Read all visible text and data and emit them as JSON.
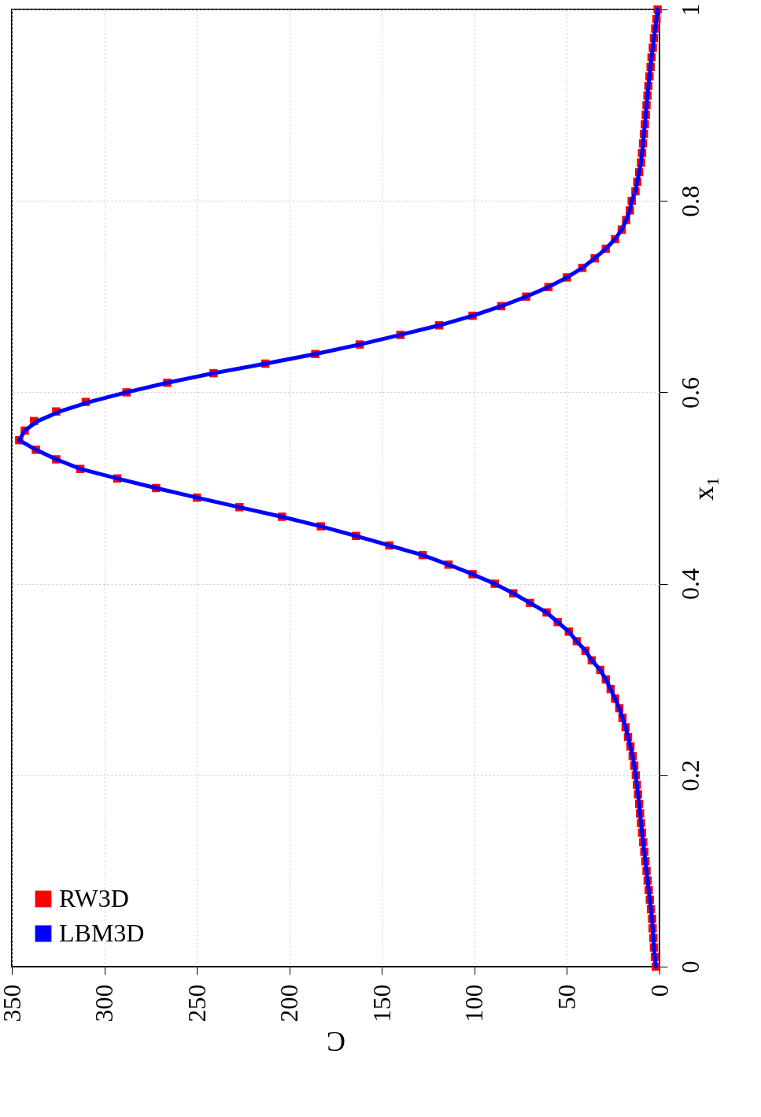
{
  "chart_data": {
    "type": "line",
    "xlabel": "C",
    "ylabel": "x₁",
    "series": [
      {
        "name": "RW3D",
        "type": "scatter",
        "marker": "square",
        "color": "#ff0000",
        "x": [
          2,
          2.5,
          3,
          3.3,
          3.7,
          4,
          4.6,
          5.2,
          5.8,
          6.4,
          7,
          7.6,
          8.2,
          8.8,
          9.4,
          10,
          10.5,
          11,
          11.6,
          12.2,
          12.8,
          13.6,
          14.5,
          15.7,
          17,
          18.3,
          20,
          21.7,
          24,
          26.4,
          29,
          32,
          36.6,
          40,
          44.7,
          49,
          55,
          61,
          70,
          79,
          89,
          101,
          114,
          128,
          146,
          164,
          183,
          204,
          227,
          250,
          272,
          293,
          313,
          326,
          337,
          346,
          343,
          338,
          326,
          310,
          288,
          266,
          241,
          213,
          186,
          162,
          140,
          119,
          101,
          85.5,
          72,
          60,
          50,
          41.7,
          35,
          29,
          24,
          20.4,
          18,
          16,
          15,
          13,
          12,
          11,
          10,
          9.4,
          8.9,
          8.4,
          7.9,
          7.4,
          7,
          6.5,
          6,
          5.4,
          4.8,
          4.3,
          3.6,
          3,
          2.3,
          1.6,
          1
        ],
        "values": [
          0,
          0.01,
          0.02,
          0.03,
          0.04,
          0.05,
          0.06,
          0.07,
          0.08,
          0.09,
          0.1,
          0.11,
          0.12,
          0.13,
          0.14,
          0.15,
          0.16,
          0.17,
          0.18,
          0.19,
          0.2,
          0.21,
          0.22,
          0.23,
          0.24,
          0.25,
          0.26,
          0.27,
          0.28,
          0.29,
          0.3,
          0.31,
          0.32,
          0.33,
          0.34,
          0.35,
          0.36,
          0.37,
          0.38,
          0.39,
          0.4,
          0.41,
          0.42,
          0.43,
          0.44,
          0.45,
          0.46,
          0.47,
          0.48,
          0.49,
          0.5,
          0.51,
          0.52,
          0.53,
          0.54,
          0.55,
          0.56,
          0.57,
          0.58,
          0.59,
          0.6,
          0.61,
          0.62,
          0.63,
          0.64,
          0.65,
          0.66,
          0.67,
          0.68,
          0.69,
          0.7,
          0.71,
          0.72,
          0.73,
          0.74,
          0.75,
          0.76,
          0.77,
          0.78,
          0.79,
          0.8,
          0.81,
          0.82,
          0.83,
          0.84,
          0.85,
          0.86,
          0.87,
          0.88,
          0.89,
          0.9,
          0.91,
          0.92,
          0.93,
          0.94,
          0.95,
          0.96,
          0.97,
          0.98,
          0.99,
          1
        ]
      },
      {
        "name": "LBM3D",
        "type": "line",
        "color": "#0000ff",
        "x": [
          2,
          2.5,
          3,
          3.3,
          3.7,
          4,
          4.6,
          5.2,
          5.8,
          6.4,
          7,
          7.6,
          8.2,
          8.8,
          9.4,
          10,
          10.5,
          11,
          11.6,
          12.2,
          12.8,
          13.6,
          14.5,
          15.7,
          17,
          18.3,
          20,
          21.7,
          24,
          26.4,
          29,
          32,
          36.6,
          40,
          44.7,
          49,
          55,
          61,
          70,
          79,
          89,
          101,
          114,
          128,
          146,
          164,
          183,
          204,
          227,
          250,
          272,
          293,
          313,
          326,
          337,
          346,
          343,
          336,
          324,
          308,
          288,
          266,
          241,
          213,
          186,
          162,
          140,
          119,
          101,
          85.5,
          72,
          60,
          50,
          41.7,
          35,
          29,
          24,
          20.4,
          18,
          16,
          15,
          13,
          12,
          11,
          10,
          9.4,
          8.9,
          8.4,
          7.9,
          7.4,
          7,
          6.5,
          6,
          5.4,
          4.8,
          4.3,
          3.6,
          3,
          2.3,
          1.6,
          1
        ],
        "values": [
          0,
          0.01,
          0.02,
          0.03,
          0.04,
          0.05,
          0.06,
          0.07,
          0.08,
          0.09,
          0.1,
          0.11,
          0.12,
          0.13,
          0.14,
          0.15,
          0.16,
          0.17,
          0.18,
          0.19,
          0.2,
          0.21,
          0.22,
          0.23,
          0.24,
          0.25,
          0.26,
          0.27,
          0.28,
          0.29,
          0.3,
          0.31,
          0.32,
          0.33,
          0.34,
          0.35,
          0.36,
          0.37,
          0.38,
          0.39,
          0.4,
          0.41,
          0.42,
          0.43,
          0.44,
          0.45,
          0.46,
          0.47,
          0.48,
          0.49,
          0.5,
          0.51,
          0.52,
          0.53,
          0.54,
          0.55,
          0.56,
          0.57,
          0.58,
          0.59,
          0.6,
          0.61,
          0.62,
          0.63,
          0.64,
          0.65,
          0.66,
          0.67,
          0.68,
          0.69,
          0.7,
          0.71,
          0.72,
          0.73,
          0.74,
          0.75,
          0.76,
          0.77,
          0.78,
          0.79,
          0.8,
          0.81,
          0.82,
          0.83,
          0.84,
          0.85,
          0.86,
          0.87,
          0.88,
          0.89,
          0.9,
          0.91,
          0.92,
          0.93,
          0.94,
          0.95,
          0.96,
          0.97,
          0.98,
          0.99,
          1
        ]
      }
    ],
    "xlim": [
      350,
      0
    ],
    "xticks": [
      0,
      50,
      100,
      150,
      200,
      250,
      300,
      350
    ],
    "ylim": [
      0,
      1
    ],
    "yticks": [
      0,
      0.2,
      0.4,
      0.6,
      0.8,
      1
    ],
    "grid": true,
    "legend": "bottom left"
  }
}
